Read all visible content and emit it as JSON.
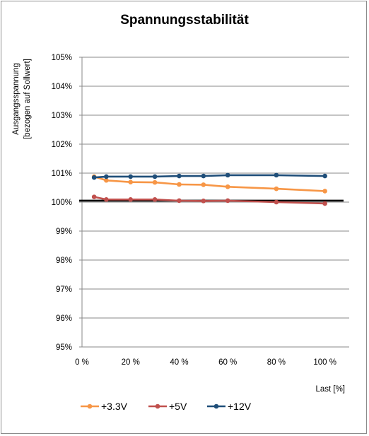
{
  "chart_data": {
    "type": "line",
    "title": "Spannungsstabilität",
    "xlabel": "Last [%]",
    "ylabel_lines": [
      "Ausgangsspannung",
      "[bezogen auf Sollwert]"
    ],
    "xlim": [
      0,
      110
    ],
    "ylim": [
      95,
      105
    ],
    "x_ticks": [
      0,
      20,
      40,
      60,
      80,
      100
    ],
    "x_tick_labels": [
      "0 %",
      "20 %",
      "40 %",
      "60 %",
      "80 %",
      "100 %"
    ],
    "y_ticks": [
      95,
      96,
      97,
      98,
      99,
      100,
      101,
      102,
      103,
      104,
      105
    ],
    "y_tick_labels": [
      "95%",
      "96%",
      "97%",
      "98%",
      "99%",
      "100%",
      "101%",
      "102%",
      "103%",
      "104%",
      "105%"
    ],
    "grid": "horizontal",
    "legend_position": "bottom",
    "reference_line": {
      "y": 100.05,
      "color": "#000000"
    },
    "series": [
      {
        "name": "+3.3V",
        "color": "#f79646",
        "x": [
          5,
          10,
          20,
          30,
          40,
          50,
          60,
          80,
          100
        ],
        "y": [
          100.88,
          100.75,
          100.69,
          100.68,
          100.61,
          100.6,
          100.53,
          100.46,
          100.38
        ]
      },
      {
        "name": "+5V",
        "color": "#c0504d",
        "x": [
          5,
          10,
          20,
          30,
          40,
          50,
          60,
          80,
          100
        ],
        "y": [
          100.18,
          100.09,
          100.09,
          100.09,
          100.05,
          100.04,
          100.05,
          100.0,
          99.95
        ]
      },
      {
        "name": "+12V",
        "color": "#1f4e79",
        "x": [
          5,
          10,
          20,
          30,
          40,
          50,
          60,
          80,
          100
        ],
        "y": [
          100.85,
          100.88,
          100.88,
          100.88,
          100.9,
          100.9,
          100.93,
          100.93,
          100.9
        ]
      }
    ]
  }
}
